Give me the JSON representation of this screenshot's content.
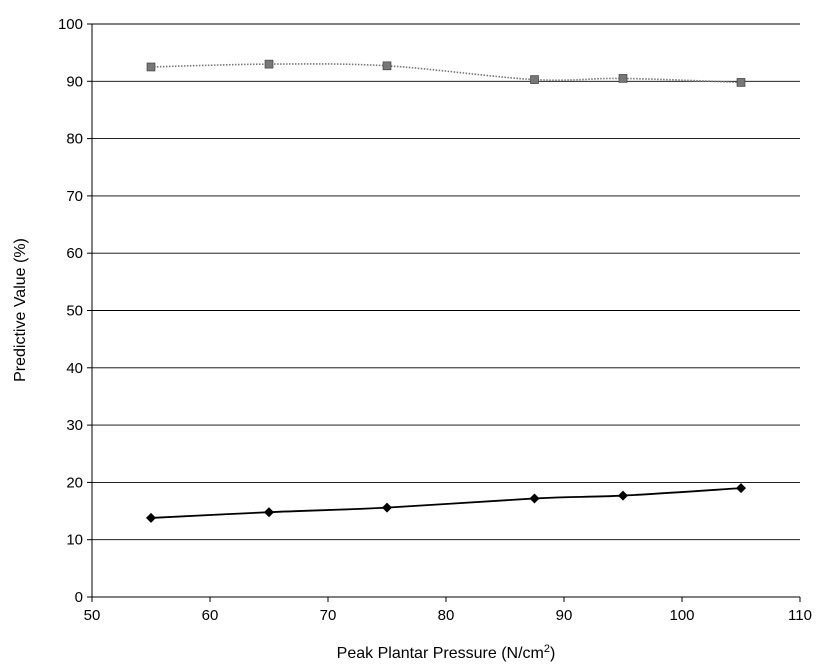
{
  "chart_data": {
    "type": "line",
    "title": "",
    "xlabel": "Peak Plantar Pressure (N/cm",
    "xlabel_superscript": "2",
    "xlabel_suffix": ")",
    "ylabel": "Predictive Value (%)",
    "xlim": [
      50,
      110
    ],
    "ylim": [
      0,
      100
    ],
    "x_ticks": [
      50,
      60,
      70,
      80,
      90,
      100,
      110
    ],
    "y_ticks": [
      0,
      10,
      20,
      30,
      40,
      50,
      60,
      70,
      80,
      90,
      100
    ],
    "grid": "horizontal",
    "legend": "none",
    "series": [
      {
        "marker": "square",
        "color": "#777777",
        "line_style": "dotted",
        "x": [
          55,
          65,
          75,
          87.5,
          95,
          105
        ],
        "y": [
          92.5,
          93,
          92.7,
          90.3,
          90.5,
          89.8
        ]
      },
      {
        "marker": "diamond",
        "color": "#000000",
        "line_style": "solid",
        "x": [
          55,
          65,
          75,
          87.5,
          95,
          105
        ],
        "y": [
          13.8,
          14.8,
          15.6,
          17.2,
          17.7,
          19
        ]
      }
    ]
  }
}
